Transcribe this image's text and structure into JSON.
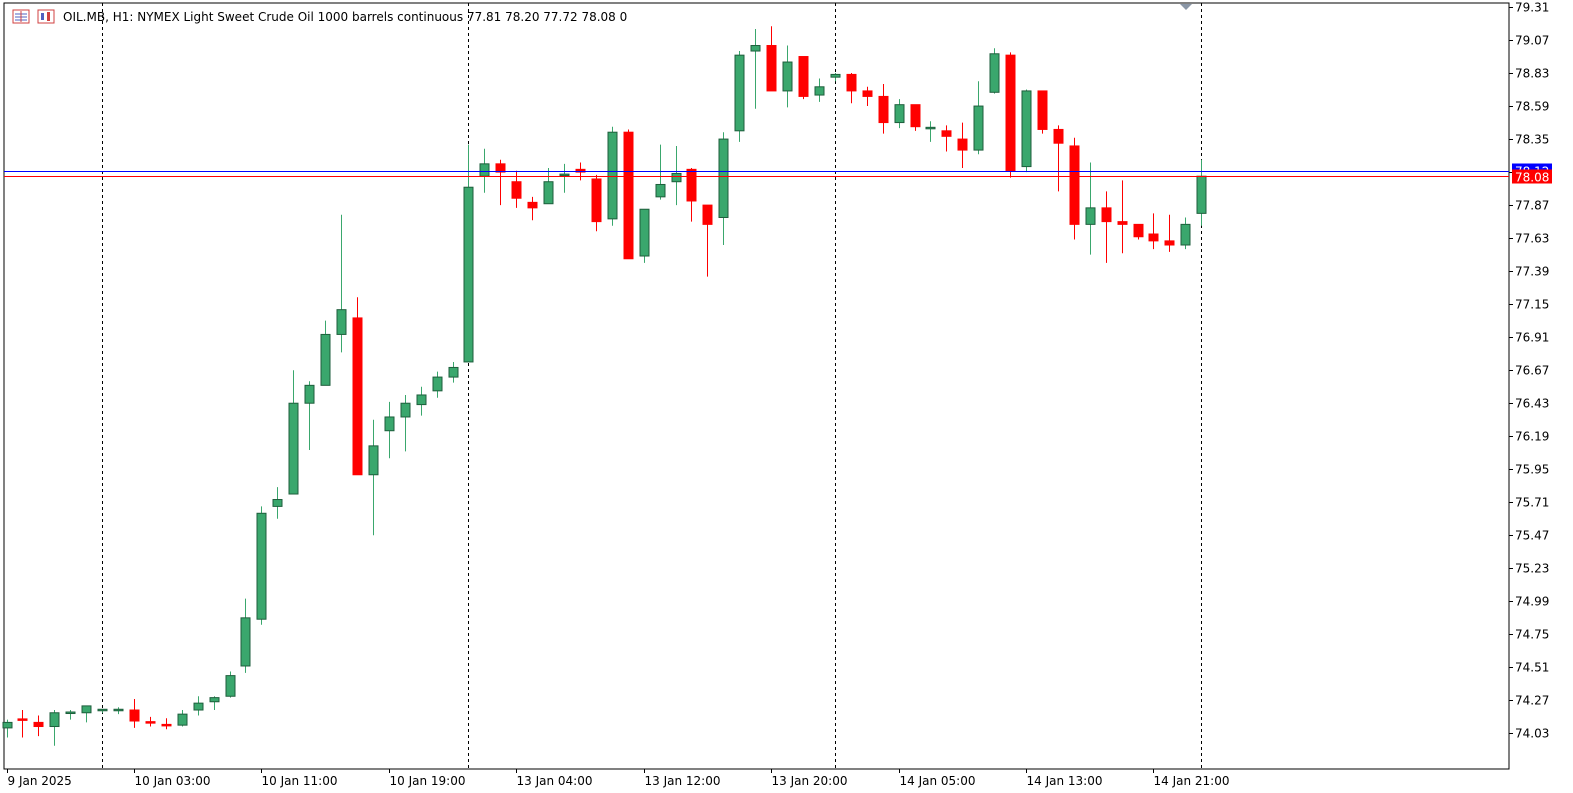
{
  "header": {
    "symbol_line": "OIL.MB, H1:  NYMEX Light Sweet Crude Oil 1000 barrels continuous  77.81 78.20 77.72 78.08  0"
  },
  "colors": {
    "bull": "#3aa76d",
    "bear": "#ff0000",
    "wick": "#000000",
    "bid_line": "#ff0000",
    "ask_line": "#0000ff",
    "ask_label_bg": "#0000ff",
    "bid_label_bg": "#ff0000"
  },
  "price_labels": {
    "ask": "78.12",
    "bid": "78.08"
  },
  "chart_data": {
    "type": "candlestick",
    "timeframe": "H1",
    "ylim": [
      73.85,
      79.31
    ],
    "yticks": [
      "79.31",
      "79.07",
      "78.83",
      "78.59",
      "78.35",
      "78.11",
      "77.87",
      "77.63",
      "77.39",
      "77.15",
      "76.91",
      "76.67",
      "76.43",
      "76.19",
      "75.95",
      "75.71",
      "75.47",
      "75.23",
      "74.99",
      "74.75",
      "74.51",
      "74.27",
      "74.03"
    ],
    "xticks": [
      {
        "index": 0,
        "label": "9 Jan 2025"
      },
      {
        "index": 8,
        "label": "10 Jan 03:00"
      },
      {
        "index": 16,
        "label": "10 Jan 11:00"
      },
      {
        "index": 24,
        "label": "10 Jan 19:00"
      },
      {
        "index": 32,
        "label": "13 Jan 04:00"
      },
      {
        "index": 40,
        "label": "13 Jan 12:00"
      },
      {
        "index": 48,
        "label": "13 Jan 20:00"
      },
      {
        "index": 56,
        "label": "14 Jan 05:00"
      },
      {
        "index": 64,
        "label": "14 Jan 13:00"
      },
      {
        "index": 72,
        "label": "14 Jan 21:00"
      }
    ],
    "session_separators": [
      6,
      29,
      52,
      75
    ],
    "grid": false,
    "candles": [
      [
        74.07,
        74.13,
        74.0,
        74.11
      ],
      [
        74.13,
        74.2,
        74.0,
        74.12
      ],
      [
        74.11,
        74.16,
        74.01,
        74.08
      ],
      [
        74.08,
        74.2,
        73.94,
        74.18
      ],
      [
        74.18,
        74.2,
        74.13,
        74.18
      ],
      [
        74.18,
        74.23,
        74.11,
        74.23
      ],
      [
        74.19,
        74.2,
        74.18,
        74.2
      ],
      [
        74.2,
        74.22,
        74.17,
        74.2
      ],
      [
        74.2,
        74.28,
        74.07,
        74.12
      ],
      [
        74.11,
        74.15,
        74.08,
        74.1
      ],
      [
        74.09,
        74.14,
        74.06,
        74.08
      ],
      [
        74.09,
        74.2,
        74.08,
        74.17
      ],
      [
        74.2,
        74.3,
        74.16,
        74.25
      ],
      [
        74.26,
        74.3,
        74.2,
        74.29
      ],
      [
        74.3,
        74.48,
        74.29,
        74.45
      ],
      [
        74.52,
        75.01,
        74.47,
        74.87
      ],
      [
        74.86,
        75.68,
        74.82,
        75.63
      ],
      [
        75.68,
        75.82,
        75.59,
        75.73
      ],
      [
        75.77,
        76.67,
        75.77,
        76.43
      ],
      [
        76.43,
        76.59,
        76.09,
        76.56
      ],
      [
        76.56,
        77.03,
        76.56,
        76.93
      ],
      [
        76.93,
        77.8,
        76.8,
        77.11
      ],
      [
        77.05,
        77.2,
        75.91,
        75.91
      ],
      [
        75.91,
        76.31,
        75.47,
        76.12
      ],
      [
        76.23,
        76.44,
        76.03,
        76.33
      ],
      [
        76.33,
        76.49,
        76.08,
        76.43
      ],
      [
        76.42,
        76.55,
        76.34,
        76.49
      ],
      [
        76.52,
        76.66,
        76.47,
        76.62
      ],
      [
        76.62,
        76.73,
        76.58,
        76.69
      ],
      [
        76.73,
        78.31,
        76.73,
        78.0
      ],
      [
        78.08,
        78.28,
        77.96,
        78.17
      ],
      [
        78.17,
        78.2,
        77.87,
        78.11
      ],
      [
        78.04,
        78.12,
        77.85,
        77.92
      ],
      [
        77.89,
        77.93,
        77.76,
        77.85
      ],
      [
        77.88,
        78.14,
        77.88,
        78.04
      ],
      [
        78.09,
        78.17,
        77.96,
        78.09
      ],
      [
        78.13,
        78.18,
        78.05,
        78.11
      ],
      [
        78.06,
        78.09,
        77.68,
        77.75
      ],
      [
        77.77,
        78.44,
        77.72,
        78.4
      ],
      [
        78.4,
        78.42,
        77.48,
        77.48
      ],
      [
        77.5,
        77.84,
        77.45,
        77.84
      ],
      [
        77.93,
        78.31,
        77.91,
        78.02
      ],
      [
        78.04,
        78.3,
        77.87,
        78.1
      ],
      [
        78.13,
        78.14,
        77.75,
        77.9
      ],
      [
        77.87,
        77.87,
        77.35,
        77.73
      ],
      [
        77.78,
        78.4,
        77.58,
        78.35
      ],
      [
        78.41,
        78.99,
        78.33,
        78.96
      ],
      [
        78.99,
        79.15,
        78.57,
        79.03
      ],
      [
        79.03,
        79.17,
        78.7,
        78.7
      ],
      [
        78.7,
        79.03,
        78.58,
        78.91
      ],
      [
        78.95,
        78.95,
        78.64,
        78.66
      ],
      [
        78.67,
        78.79,
        78.62,
        78.73
      ],
      [
        78.8,
        78.83,
        78.77,
        78.82
      ],
      [
        78.82,
        78.83,
        78.61,
        78.7
      ],
      [
        78.7,
        78.73,
        78.59,
        78.66
      ],
      [
        78.66,
        78.75,
        78.39,
        78.47
      ],
      [
        78.47,
        78.64,
        78.43,
        78.6
      ],
      [
        78.6,
        78.6,
        78.41,
        78.44
      ],
      [
        78.43,
        78.48,
        78.33,
        78.43
      ],
      [
        78.41,
        78.45,
        78.26,
        78.37
      ],
      [
        78.35,
        78.47,
        78.14,
        78.27
      ],
      [
        78.27,
        78.77,
        78.24,
        78.59
      ],
      [
        78.69,
        79.01,
        78.68,
        78.97
      ],
      [
        78.96,
        78.98,
        78.07,
        78.12
      ],
      [
        78.15,
        78.71,
        78.11,
        78.7
      ],
      [
        78.7,
        78.7,
        78.39,
        78.42
      ],
      [
        78.42,
        78.45,
        77.97,
        78.32
      ],
      [
        78.3,
        78.36,
        77.62,
        77.73
      ],
      [
        77.73,
        78.18,
        77.51,
        77.85
      ],
      [
        77.85,
        77.97,
        77.45,
        77.75
      ],
      [
        77.75,
        78.05,
        77.52,
        77.73
      ],
      [
        77.73,
        77.73,
        77.62,
        77.64
      ],
      [
        77.66,
        77.81,
        77.55,
        77.61
      ],
      [
        77.61,
        77.8,
        77.53,
        77.58
      ],
      [
        77.58,
        77.78,
        77.55,
        77.73
      ],
      [
        77.81,
        78.2,
        77.72,
        78.08
      ]
    ]
  }
}
